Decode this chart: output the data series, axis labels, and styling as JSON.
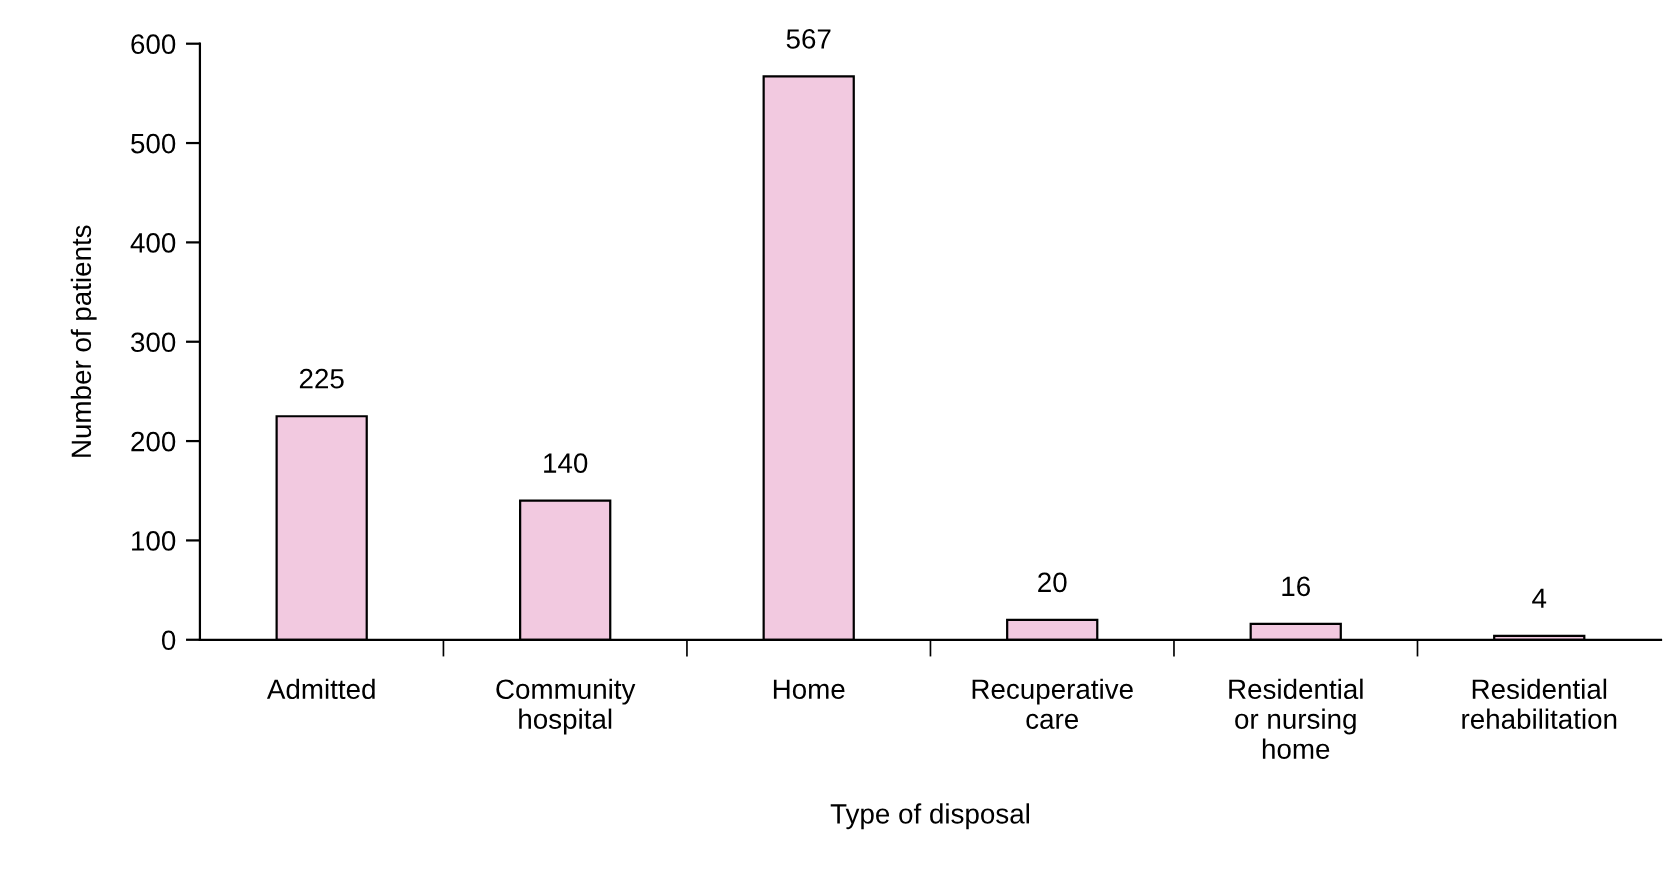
{
  "chart_data": {
    "type": "bar",
    "xlabel": "Type of disposal",
    "ylabel": "Number of patients",
    "categories": [
      "Admitted",
      "Community\nhospital",
      "Home",
      "Recuperative\ncare",
      "Residential\nor nursing\nhome",
      "Residential\nrehabilitation"
    ],
    "values": [
      225,
      140,
      567,
      20,
      16,
      4
    ],
    "color": "#f2c9e0",
    "ylim": [
      0,
      600
    ],
    "yticks": [
      0,
      100,
      200,
      300,
      400,
      500,
      600
    ],
    "data_labels": true,
    "grid": false,
    "legend": false
  }
}
